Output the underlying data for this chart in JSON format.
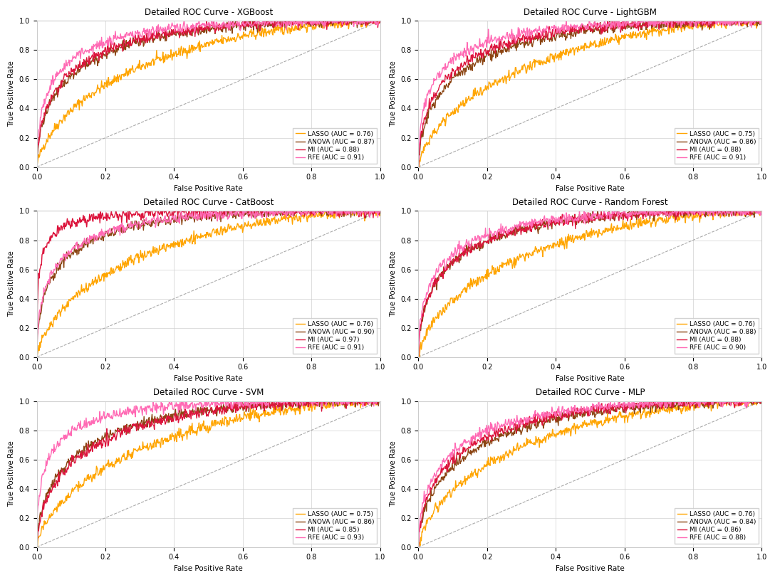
{
  "subplots": [
    {
      "title": "Detailed ROC Curve - XGBoost",
      "curves": [
        {
          "label": "LASSO (AUC = 0.76)",
          "color": "#FFA500",
          "auc": 0.76
        },
        {
          "label": "ANOVA (AUC = 0.87)",
          "color": "#8B4513",
          "auc": 0.87
        },
        {
          "label": "MI (AUC = 0.88)",
          "color": "#DC143C",
          "auc": 0.88
        },
        {
          "label": "RFE (AUC = 0.91)",
          "color": "#FF69B4",
          "auc": 0.91
        }
      ]
    },
    {
      "title": "Detailed ROC Curve - LightGBM",
      "curves": [
        {
          "label": "LASSO (AUC = 0.75)",
          "color": "#FFA500",
          "auc": 0.75
        },
        {
          "label": "ANOVA (AUC = 0.86)",
          "color": "#8B4513",
          "auc": 0.86
        },
        {
          "label": "MI (AUC = 0.88)",
          "color": "#DC143C",
          "auc": 0.88
        },
        {
          "label": "RFE (AUC = 0.91)",
          "color": "#FF69B4",
          "auc": 0.91
        }
      ]
    },
    {
      "title": "Detailed ROC Curve - CatBoost",
      "curves": [
        {
          "label": "LASSO (AUC = 0.76)",
          "color": "#FFA500",
          "auc": 0.76
        },
        {
          "label": "ANOVA (AUC = 0.90)",
          "color": "#8B4513",
          "auc": 0.9
        },
        {
          "label": "MI (AUC = 0.97)",
          "color": "#DC143C",
          "auc": 0.97
        },
        {
          "label": "RFE (AUC = 0.91)",
          "color": "#FF69B4",
          "auc": 0.91
        }
      ]
    },
    {
      "title": "Detailed ROC Curve - Random Forest",
      "curves": [
        {
          "label": "LASSO (AUC = 0.76)",
          "color": "#FFA500",
          "auc": 0.76
        },
        {
          "label": "ANOVA (AUC = 0.88)",
          "color": "#8B4513",
          "auc": 0.88
        },
        {
          "label": "MI (AUC = 0.88)",
          "color": "#DC143C",
          "auc": 0.88
        },
        {
          "label": "RFE (AUC = 0.90)",
          "color": "#FF69B4",
          "auc": 0.9
        }
      ]
    },
    {
      "title": "Detailed ROC Curve - SVM",
      "curves": [
        {
          "label": "LASSO (AUC = 0.75)",
          "color": "#FFA500",
          "auc": 0.75
        },
        {
          "label": "ANOVA (AUC = 0.86)",
          "color": "#8B4513",
          "auc": 0.86
        },
        {
          "label": "MI (AUC = 0.85)",
          "color": "#DC143C",
          "auc": 0.85
        },
        {
          "label": "RFE (AUC = 0.93)",
          "color": "#FF69B4",
          "auc": 0.93
        }
      ]
    },
    {
      "title": "Detailed ROC Curve - MLP",
      "curves": [
        {
          "label": "LASSO (AUC = 0.76)",
          "color": "#FFA500",
          "auc": 0.76
        },
        {
          "label": "ANOVA (AUC = 0.84)",
          "color": "#8B4513",
          "auc": 0.84
        },
        {
          "label": "MI (AUC = 0.86)",
          "color": "#DC143C",
          "auc": 0.86
        },
        {
          "label": "RFE (AUC = 0.88)",
          "color": "#FF69B4",
          "auc": 0.88
        }
      ]
    }
  ],
  "xlabel": "False Positive Rate",
  "ylabel": "True Positive Rate",
  "xlim": [
    0.0,
    1.0
  ],
  "ylim": [
    0.0,
    1.0
  ],
  "grid_color": "#d0d0d0",
  "diagonal_color": "#aaaaaa",
  "legend_fontsize": 6.5,
  "title_fontsize": 8.5,
  "axis_label_fontsize": 7.5,
  "tick_fontsize": 7,
  "line_width": 1.0,
  "noise_scale": 0.018,
  "n_points": 600
}
